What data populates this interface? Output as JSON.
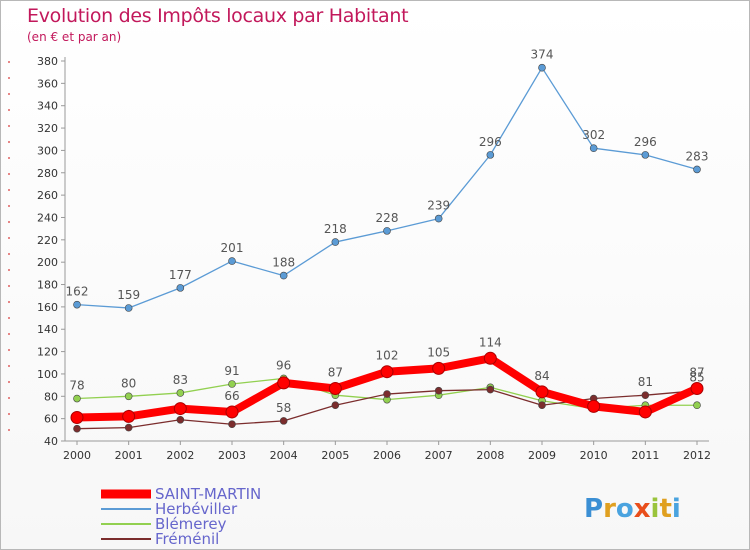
{
  "title": "Evolution des Impôts locaux par Habitant",
  "subtitle": "(en € et par an)",
  "logo_text": "Proxiti",
  "chart_data": {
    "type": "line",
    "title": "Evolution des Impôts locaux par Habitant",
    "subtitle": "(en € et par an)",
    "xlabel": "",
    "ylabel": "",
    "ylim": [
      40,
      380
    ],
    "yticks": [
      40,
      60,
      80,
      100,
      120,
      140,
      160,
      180,
      200,
      220,
      240,
      260,
      280,
      300,
      320,
      340,
      360,
      380
    ],
    "x": [
      "2000",
      "2001",
      "2002",
      "2003",
      "2004",
      "2005",
      "2006",
      "2007",
      "2008",
      "2009",
      "2010",
      "2011",
      "2012"
    ],
    "grid": false,
    "legend_position": "bottom-left",
    "series": [
      {
        "name": "Herbéviller",
        "color": "#5b9bd5",
        "values": [
          162,
          159,
          177,
          201,
          188,
          218,
          228,
          239,
          296,
          374,
          302,
          296,
          283
        ]
      },
      {
        "name": "Blémerey",
        "color": "#92d050",
        "values": [
          78,
          80,
          83,
          91,
          96,
          81,
          77,
          81,
          88,
          76,
          69,
          72,
          72
        ]
      },
      {
        "name": "Fréménil",
        "color": "#7b2d2d",
        "values": [
          51,
          52,
          59,
          55,
          58,
          72,
          82,
          85,
          86,
          72,
          78,
          81,
          85
        ]
      },
      {
        "name": "SAINT-MARTIN",
        "color": "#ff0000",
        "values": [
          61,
          62,
          69,
          66,
          92,
          87,
          102,
          105,
          114,
          84,
          71,
          66,
          87
        ]
      }
    ],
    "labels": {
      "Herbéviller": [
        "162",
        "159",
        "177",
        "201",
        "188",
        "218",
        "228",
        "239",
        "296",
        "374",
        "302",
        "296",
        "283"
      ],
      "Blémerey": [
        "78",
        "80",
        "83",
        "91",
        "96",
        "",
        "",
        "",
        "",
        "",
        "",
        "",
        ""
      ],
      "Fréménil": [
        "",
        "",
        "",
        "",
        "58",
        "",
        "",
        "",
        "",
        "",
        "",
        "81",
        "85"
      ],
      "SAINT-MARTIN": [
        "",
        "",
        "",
        "66",
        "",
        "87",
        "102",
        "105",
        "114",
        "84",
        "",
        "",
        "87"
      ]
    }
  }
}
